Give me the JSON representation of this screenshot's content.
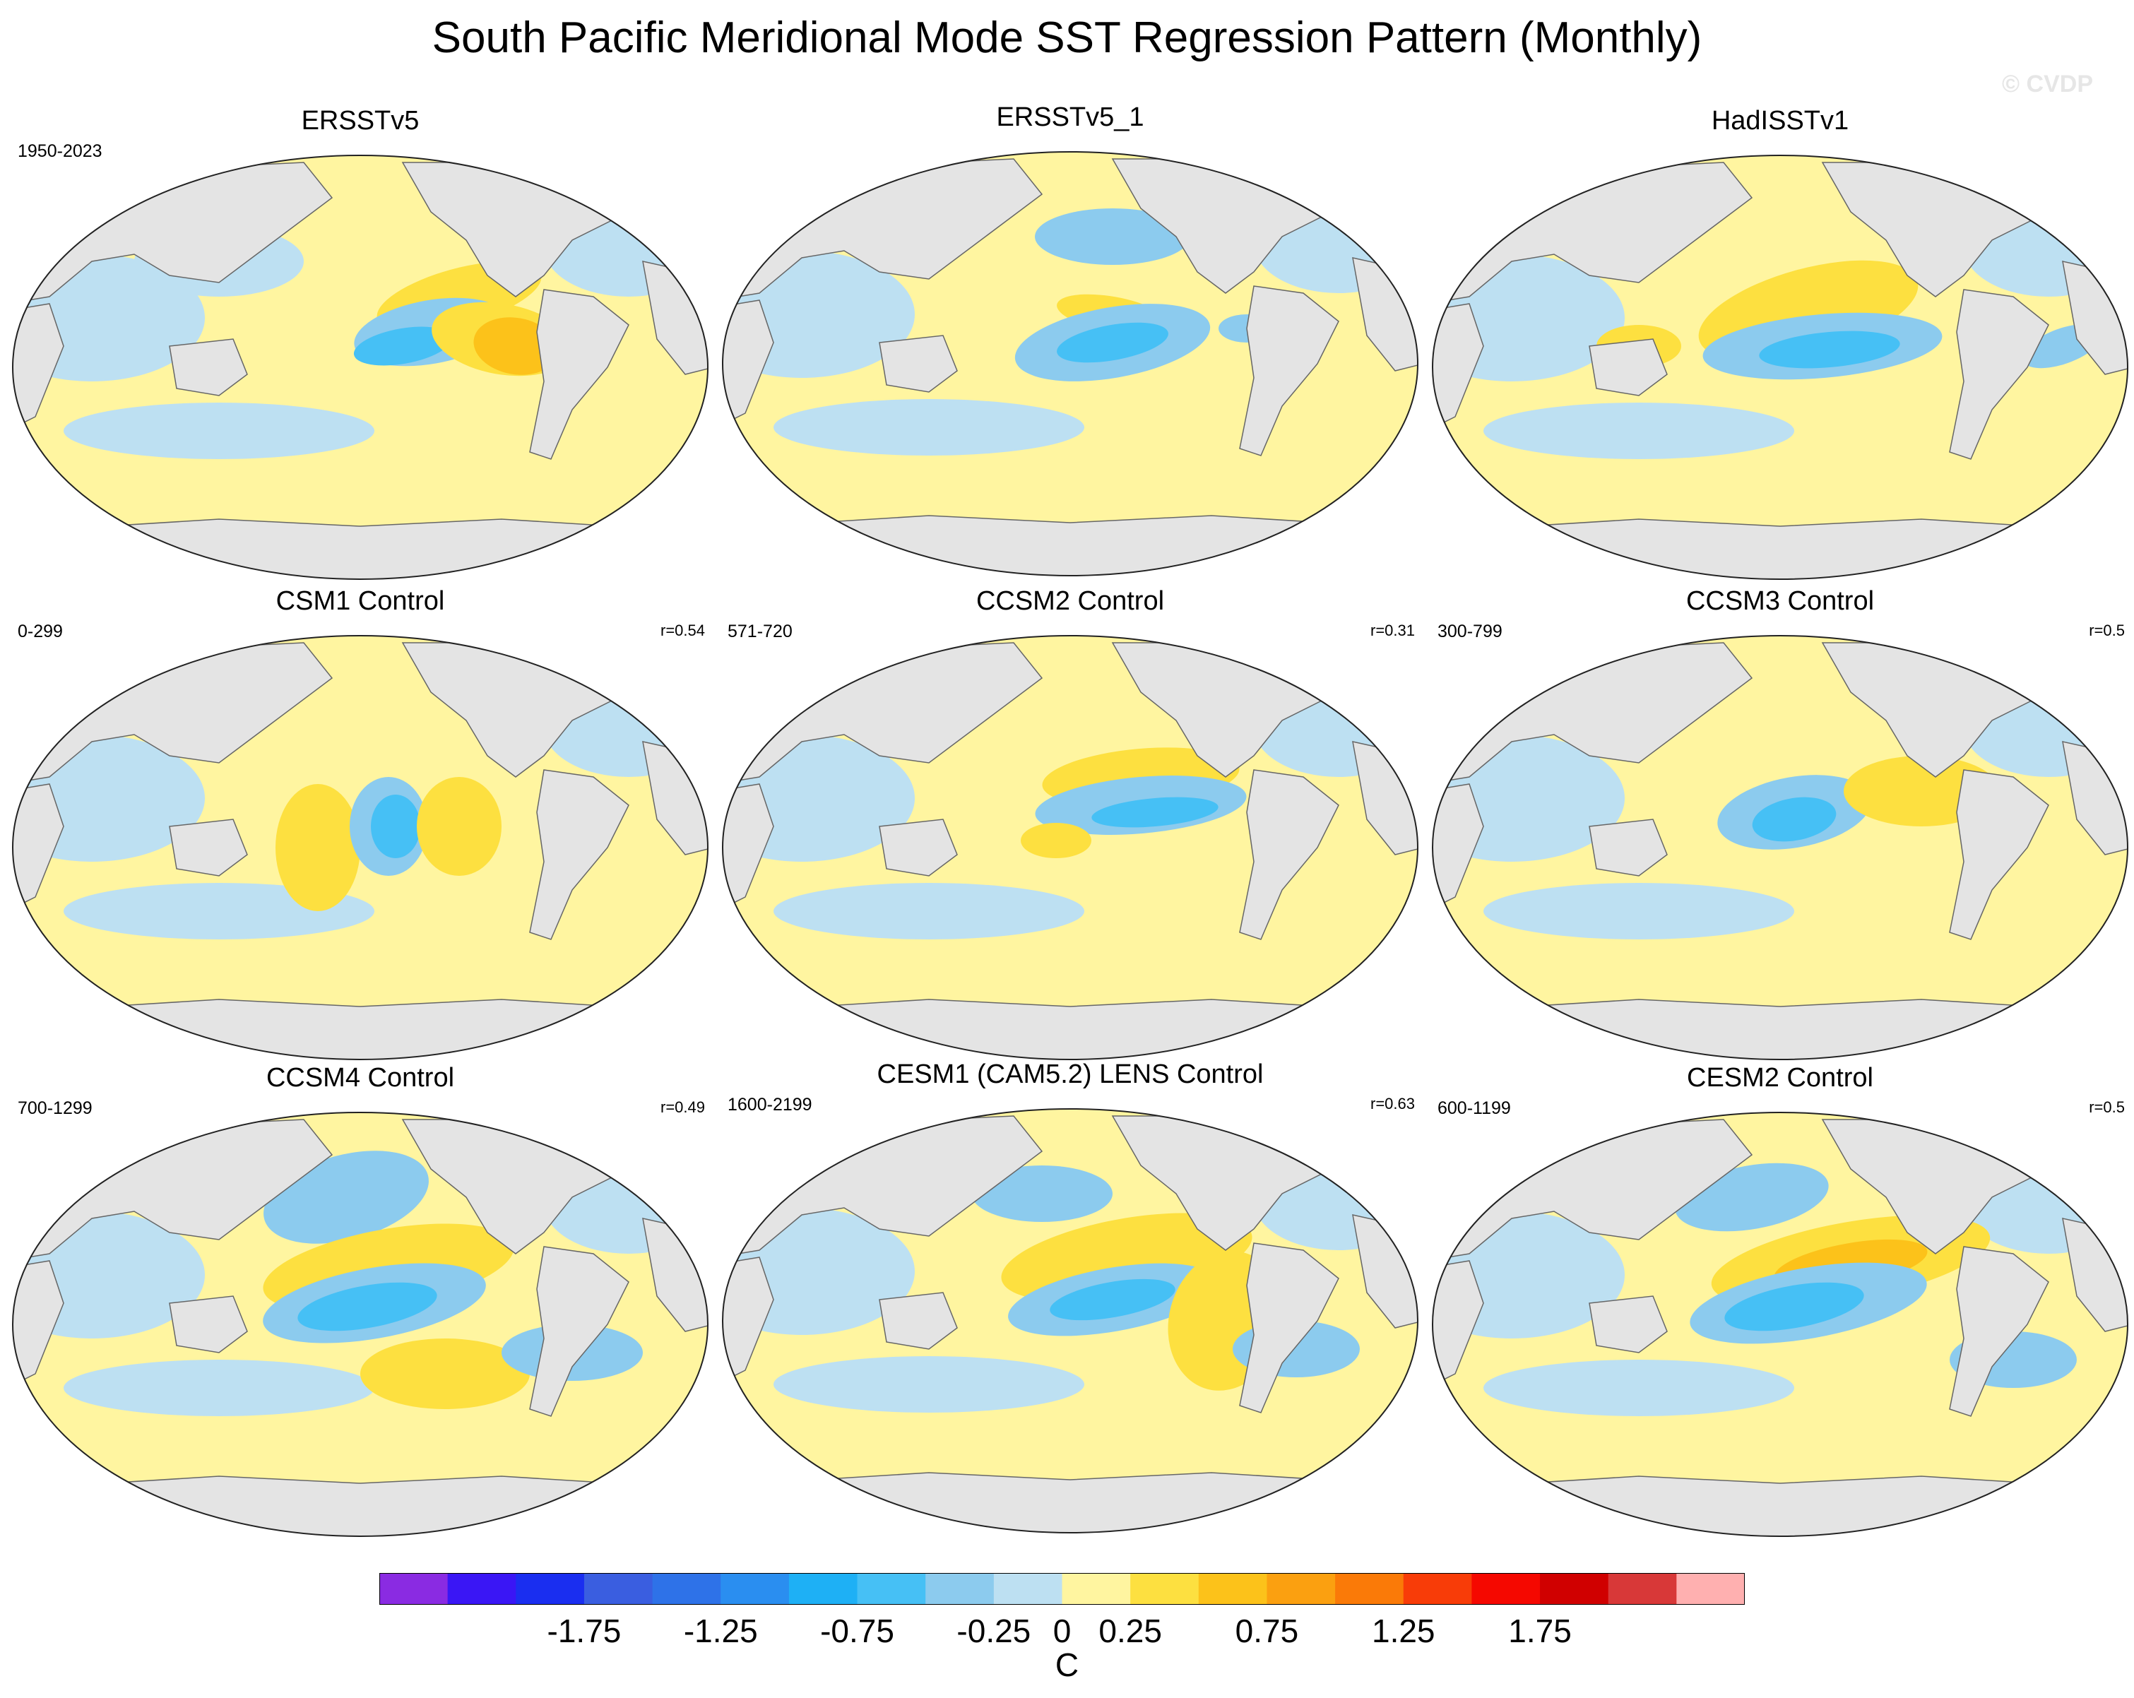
{
  "title": "South Pacific Meridional Mode SST Regression Pattern (Monthly)",
  "watermark": "© CVDP",
  "panels": [
    {
      "title": "ERSSTv5",
      "years": "1950-2023",
      "corr": ""
    },
    {
      "title": "ERSSTv5_1",
      "years": "",
      "corr": ""
    },
    {
      "title": "HadISSTv1",
      "years": "",
      "corr": ""
    },
    {
      "title": "CSM1 Control",
      "years": "0-299",
      "corr": "r=0.54"
    },
    {
      "title": "CCSM2 Control",
      "years": "571-720",
      "corr": "r=0.31"
    },
    {
      "title": "CCSM3 Control",
      "years": "300-799",
      "corr": "r=0.5"
    },
    {
      "title": "CCSM4 Control",
      "years": "700-1299",
      "corr": "r=0.49"
    },
    {
      "title": "CESM1 (CAM5.2) LENS Control",
      "years": "1600-2199",
      "corr": "r=0.63"
    },
    {
      "title": "CESM2 Control",
      "years": "600-1199",
      "corr": "r=0.5"
    }
  ],
  "colorbar": {
    "colors": [
      "#8a2be2",
      "#3a16f5",
      "#1a2ef0",
      "#3a5ee0",
      "#2e72e8",
      "#2a8ef0",
      "#1eb0f5",
      "#46c0f5",
      "#8ccbee",
      "#bde0f2",
      "#fff5a0",
      "#fde040",
      "#fcc21a",
      "#fba010",
      "#fa7a08",
      "#f83c08",
      "#f50800",
      "#d00000",
      "#d83838",
      "#ffb0b0"
    ],
    "labels": [
      "-1.75",
      "-1.25",
      "-0.75",
      "-0.25",
      "0",
      "0.25",
      "0.75",
      "1.25",
      "1.75"
    ],
    "unit": "C"
  },
  "colors": {
    "ocean_neutral": "#fff5a0",
    "ocean_neg": "#bde0f2",
    "neg_mid": "#8ccbee",
    "neg_strong": "#46c0f5",
    "pos_mid": "#fde040",
    "pos_strong": "#fcc21a",
    "land": "#e4e4e4"
  }
}
